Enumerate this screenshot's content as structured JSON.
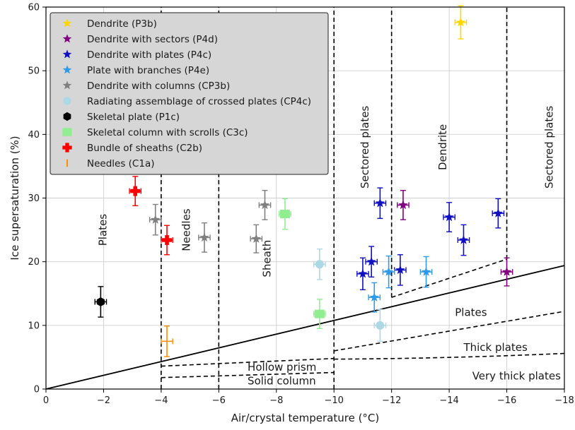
{
  "chart_data": {
    "type": "scatter",
    "xlabel": "Air/crystal temperature (°C)",
    "ylabel": "Ice supersaturation (%)",
    "xlim": [
      0,
      -18
    ],
    "ylim": [
      0,
      60
    ],
    "x_ticks": [
      0,
      -2,
      -4,
      -6,
      -8,
      -10,
      -12,
      -14,
      -16,
      -18
    ],
    "x_tick_labels": [
      "0",
      "−2",
      "−4",
      "−6",
      "−8",
      "−10",
      "−12",
      "−14",
      "−16",
      "−18"
    ],
    "y_ticks": [
      0,
      10,
      20,
      30,
      40,
      50,
      60
    ],
    "y_tick_labels": [
      "0",
      "10",
      "20",
      "30",
      "40",
      "50",
      "60"
    ],
    "grid": true,
    "legend_position": "top-left",
    "series": [
      {
        "name": "Dendrite (P3b)",
        "marker": "star",
        "color": "#ffd700",
        "points": [
          {
            "x": -14.4,
            "y": 57.6,
            "xerr": 0.2,
            "yerr": 2.6
          }
        ]
      },
      {
        "name": "Dendrite with sectors (P4d)",
        "marker": "star",
        "color": "#800080",
        "points": [
          {
            "x": -12.4,
            "y": 28.9,
            "xerr": 0.2,
            "yerr": 2.3
          },
          {
            "x": -16.0,
            "y": 18.4,
            "xerr": 0.2,
            "yerr": 2.2
          }
        ]
      },
      {
        "name": "Dendrite with plates (P4c)",
        "marker": "star",
        "color": "#1010c0",
        "points": [
          {
            "x": -11.6,
            "y": 29.2,
            "xerr": 0.2,
            "yerr": 2.4
          },
          {
            "x": -11.0,
            "y": 18.1,
            "xerr": 0.2,
            "yerr": 2.5
          },
          {
            "x": -11.3,
            "y": 20.0,
            "xerr": 0.2,
            "yerr": 2.4
          },
          {
            "x": -12.3,
            "y": 18.7,
            "xerr": 0.2,
            "yerr": 2.4
          },
          {
            "x": -14.0,
            "y": 27.0,
            "xerr": 0.2,
            "yerr": 2.3
          },
          {
            "x": -14.5,
            "y": 23.4,
            "xerr": 0.2,
            "yerr": 2.4
          },
          {
            "x": -15.7,
            "y": 27.6,
            "xerr": 0.2,
            "yerr": 2.3
          }
        ]
      },
      {
        "name": "Plate with branches (P4e)",
        "marker": "star",
        "color": "#2e9be8",
        "points": [
          {
            "x": -11.4,
            "y": 14.4,
            "xerr": 0.2,
            "yerr": 2.3
          },
          {
            "x": -11.9,
            "y": 18.4,
            "xerr": 0.2,
            "yerr": 2.5
          },
          {
            "x": -13.2,
            "y": 18.4,
            "xerr": 0.2,
            "yerr": 2.4
          }
        ]
      },
      {
        "name": "Dendrite with columns (CP3b)",
        "marker": "star",
        "color": "#808080",
        "points": [
          {
            "x": -3.8,
            "y": 26.6,
            "xerr": 0.2,
            "yerr": 2.4
          },
          {
            "x": -5.5,
            "y": 23.8,
            "xerr": 0.2,
            "yerr": 2.3
          },
          {
            "x": -7.3,
            "y": 23.6,
            "xerr": 0.2,
            "yerr": 2.2
          },
          {
            "x": -7.6,
            "y": 28.9,
            "xerr": 0.2,
            "yerr": 2.3
          }
        ]
      },
      {
        "name": "Radiating assemblage of crossed plates (CP4c)",
        "marker": "circle",
        "color": "#add8e6",
        "points": [
          {
            "x": -9.5,
            "y": 19.6,
            "xerr": 0.2,
            "yerr": 2.4
          },
          {
            "x": -11.6,
            "y": 10.0,
            "xerr": 0.2,
            "yerr": 2.5
          }
        ]
      },
      {
        "name": "Skeletal plate (P1c)",
        "marker": "hexagon",
        "color": "#000000",
        "points": [
          {
            "x": -1.9,
            "y": 13.7,
            "xerr": 0.2,
            "yerr": 2.4
          }
        ]
      },
      {
        "name": "Skeletal column with scrolls (C3c)",
        "marker": "square",
        "color": "#90ee90",
        "points": [
          {
            "x": -8.3,
            "y": 27.5,
            "xerr": 0.2,
            "yerr": 2.4
          },
          {
            "x": -9.5,
            "y": 11.8,
            "xerr": 0.2,
            "yerr": 2.3
          }
        ]
      },
      {
        "name": "Bundle of sheaths (C2b)",
        "marker": "plus",
        "color": "#ff0000",
        "points": [
          {
            "x": -3.1,
            "y": 31.1,
            "xerr": 0.2,
            "yerr": 2.3
          },
          {
            "x": -4.2,
            "y": 23.4,
            "xerr": 0.2,
            "yerr": 2.3
          }
        ]
      },
      {
        "name": "Needles (C1a)",
        "marker": "vline",
        "color": "#ff8c00",
        "points": [
          {
            "x": -4.2,
            "y": 7.5,
            "xerr": 0.2,
            "yerr": 2.4
          }
        ]
      }
    ],
    "lines": [
      {
        "style": "solid",
        "points": [
          [
            0,
            0
          ],
          [
            -18,
            19.4
          ]
        ]
      },
      {
        "style": "dashed",
        "points": [
          [
            -12,
            14.4
          ],
          [
            -16,
            20.4
          ]
        ]
      },
      {
        "style": "dashed",
        "points": [
          [
            -10,
            6.0
          ],
          [
            -18,
            12.2
          ]
        ]
      },
      {
        "style": "dashed",
        "points": [
          [
            -10,
            4.7
          ],
          [
            -18,
            5.6
          ]
        ],
        "curve": 0.9
      },
      {
        "style": "dashed",
        "points": [
          [
            -4,
            3.6
          ],
          [
            -10,
            4.8
          ]
        ]
      },
      {
        "style": "dashed",
        "points": [
          [
            -4,
            1.8
          ],
          [
            -10,
            2.6
          ]
        ]
      },
      {
        "style": "dashed",
        "points": [
          [
            -4,
            0
          ],
          [
            -4,
            60
          ]
        ]
      },
      {
        "style": "dashed",
        "points": [
          [
            -6,
            0
          ],
          [
            -6,
            60
          ]
        ]
      },
      {
        "style": "dashed",
        "points": [
          [
            -10,
            0
          ],
          [
            -10,
            60
          ]
        ]
      },
      {
        "style": "dashed",
        "points": [
          [
            -12,
            14.4
          ],
          [
            -12,
            60
          ]
        ]
      },
      {
        "style": "dashed",
        "points": [
          [
            -16,
            20.4
          ],
          [
            -16,
            60
          ]
        ]
      }
    ],
    "region_labels": [
      {
        "text": "Plates",
        "x": -2.1,
        "y": 25,
        "rotate": true
      },
      {
        "text": "Needles",
        "x": -5.0,
        "y": 25,
        "rotate": true
      },
      {
        "text": "Sheath",
        "x": -7.8,
        "y": 20.5,
        "rotate": true
      },
      {
        "text": "Sectored plates",
        "x": -11.2,
        "y": 38,
        "rotate": true
      },
      {
        "text": "Dendrite",
        "x": -13.9,
        "y": 38,
        "rotate": true
      },
      {
        "text": "Sectored plates",
        "x": -17.6,
        "y": 38,
        "rotate": true
      },
      {
        "text": "Plates",
        "x": -14.2,
        "y": 11.5,
        "rotate": false
      },
      {
        "text": "Thick plates",
        "x": -14.5,
        "y": 6.0,
        "rotate": false
      },
      {
        "text": "Very thick plates",
        "x": -14.8,
        "y": 1.5,
        "rotate": false
      },
      {
        "text": "Hollow prism",
        "x": -7.0,
        "y": 2.9,
        "rotate": false
      },
      {
        "text": "Solid column",
        "x": -7.0,
        "y": 0.7,
        "rotate": false
      }
    ]
  }
}
